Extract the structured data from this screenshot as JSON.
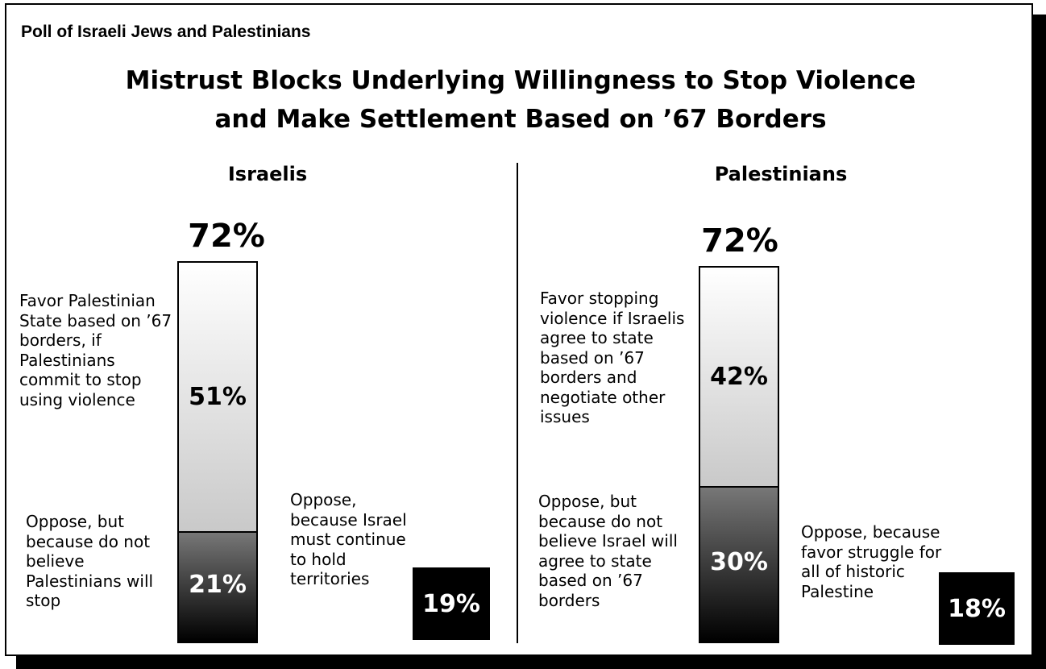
{
  "header": {
    "tag": "Poll of Israeli Jews and Palestinians",
    "title_line1": "Mistrust Blocks Underlying Willingness to Stop Violence",
    "title_line2": "and Make Settlement Based on ’67 Borders"
  },
  "colors": {
    "box": "#000000",
    "favor_gradient": [
      "#ffffff",
      "#c9c9c9"
    ],
    "oppose_gradient": [
      "#777777",
      "#000000"
    ]
  },
  "chart_data": [
    {
      "type": "bar",
      "title": "Israelis",
      "total": "72%",
      "stack": [
        {
          "label": "Favor Palestinian State based on ’67 borders, if Palestinians commit to stop using violence",
          "value": 51,
          "display": "51%"
        },
        {
          "label": "Oppose, but because do not believe Palestinians will stop",
          "value": 21,
          "display": "21%"
        }
      ],
      "separate": {
        "label": "Oppose, because Israel must continue to hold territories",
        "value": 19,
        "display": "19%"
      }
    },
    {
      "type": "bar",
      "title": "Palestinians",
      "total": "72%",
      "stack": [
        {
          "label": "Favor stopping violence if Israelis agree to state based on ’67 borders and negotiate other issues",
          "value": 42,
          "display": "42%"
        },
        {
          "label": "Oppose, but because do not believe Israel will agree to state based on ’67 borders",
          "value": 30,
          "display": "30%"
        }
      ],
      "separate": {
        "label": "Oppose, because favor struggle for all of historic Palestine",
        "value": 18,
        "display": "18%"
      }
    }
  ]
}
